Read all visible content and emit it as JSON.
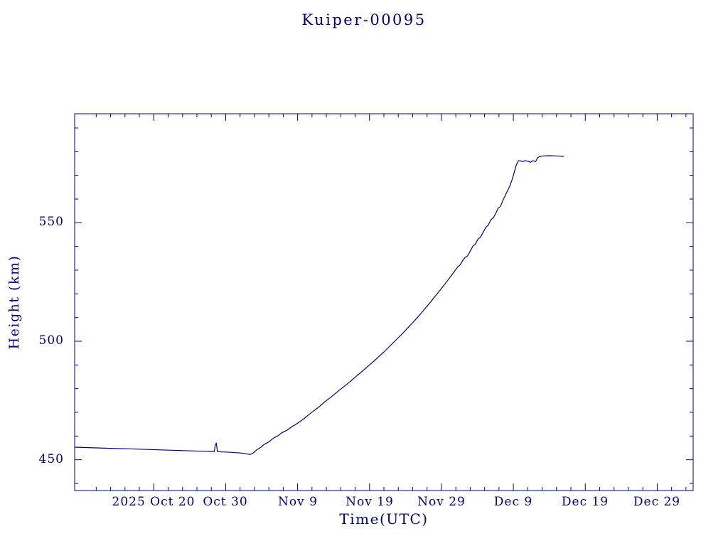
{
  "page": {
    "background": "#ffffff"
  },
  "chart_data": {
    "type": "line",
    "title": "Kuiper-00095",
    "xlabel": "Time(UTC)",
    "ylabel": "Height (km)",
    "line_color": "#000080",
    "axis_color": "#000080",
    "grid": false,
    "legend": "none",
    "x_axis": {
      "epoch_day0": "2025 Oct 9",
      "xlim_days": [
        0,
        86
      ],
      "minor_tick_step_days": 2,
      "major_ticks": [
        {
          "day": 11,
          "label": "2025 Oct 20"
        },
        {
          "day": 21,
          "label": "Oct 30"
        },
        {
          "day": 31,
          "label": "Nov 9"
        },
        {
          "day": 41,
          "label": "Nov 19"
        },
        {
          "day": 51,
          "label": "Nov 29"
        },
        {
          "day": 61,
          "label": "Dec 9"
        },
        {
          "day": 71,
          "label": "Dec 19"
        },
        {
          "day": 81,
          "label": "Dec 29"
        }
      ]
    },
    "y_axis": {
      "ylim": [
        437,
        596
      ],
      "minor_tick_step": 10,
      "major_ticks": [
        {
          "value": 450,
          "label": "450"
        },
        {
          "value": 500,
          "label": "500"
        },
        {
          "value": 550,
          "label": "550"
        }
      ]
    },
    "series": [
      {
        "name": "Kuiper-00095 height",
        "points_day_km": [
          [
            0,
            455.3
          ],
          [
            1.5,
            455.15
          ],
          [
            3,
            455.0
          ],
          [
            4.5,
            454.85
          ],
          [
            6,
            454.7
          ],
          [
            7.5,
            454.6
          ],
          [
            9,
            454.45
          ],
          [
            10.5,
            454.3
          ],
          [
            12,
            454.15
          ],
          [
            13.5,
            454.0
          ],
          [
            15,
            453.85
          ],
          [
            16.5,
            453.7
          ],
          [
            18,
            453.6
          ],
          [
            19.0,
            453.5
          ],
          [
            19.4,
            453.45
          ],
          [
            19.55,
            456.2
          ],
          [
            19.7,
            457.0
          ],
          [
            19.85,
            453.4
          ],
          [
            20.5,
            453.3
          ],
          [
            21,
            453.25
          ],
          [
            21.8,
            453.1
          ],
          [
            22.5,
            452.95
          ],
          [
            23.2,
            452.8
          ],
          [
            23.8,
            452.55
          ],
          [
            24.1,
            452.35
          ],
          [
            24.4,
            452.2
          ],
          [
            24.7,
            452.6
          ],
          [
            25.0,
            453.3
          ],
          [
            25.3,
            454.1
          ],
          [
            25.6,
            454.7
          ],
          [
            25.9,
            455.3
          ],
          [
            26.2,
            456.1
          ],
          [
            26.5,
            456.7
          ],
          [
            26.8,
            457.2
          ],
          [
            27.1,
            457.8
          ],
          [
            27.4,
            458.5
          ],
          [
            27.7,
            459.2
          ],
          [
            28.0,
            459.7
          ],
          [
            28.3,
            460.2
          ],
          [
            28.6,
            460.9
          ],
          [
            28.9,
            461.5
          ],
          [
            29.2,
            462.0
          ],
          [
            29.5,
            462.4
          ],
          [
            29.8,
            463.0
          ],
          [
            30.1,
            463.7
          ],
          [
            30.4,
            464.3
          ],
          [
            30.7,
            464.8
          ],
          [
            31.0,
            465.4
          ],
          [
            31.5,
            466.5
          ],
          [
            32.0,
            467.6
          ],
          [
            32.5,
            468.9
          ],
          [
            33.0,
            470.1
          ],
          [
            33.5,
            471.2
          ],
          [
            34.0,
            472.4
          ],
          [
            34.5,
            473.7
          ],
          [
            35.0,
            475.0
          ],
          [
            35.5,
            476.1
          ],
          [
            36.0,
            477.3
          ],
          [
            36.5,
            478.6
          ],
          [
            37.0,
            479.8
          ],
          [
            37.5,
            481.0
          ],
          [
            38.0,
            482.2
          ],
          [
            38.5,
            483.5
          ],
          [
            39.0,
            484.8
          ],
          [
            39.5,
            486.1
          ],
          [
            40.0,
            487.4
          ],
          [
            40.5,
            488.7
          ],
          [
            41.0,
            490.0
          ],
          [
            41.5,
            491.3
          ],
          [
            42.0,
            492.7
          ],
          [
            42.5,
            494.1
          ],
          [
            43.0,
            495.5
          ],
          [
            43.5,
            497.0
          ],
          [
            44.0,
            498.5
          ],
          [
            44.5,
            500.0
          ],
          [
            45.0,
            501.5
          ],
          [
            45.5,
            503.0
          ],
          [
            46.0,
            504.6
          ],
          [
            46.5,
            506.2
          ],
          [
            47.0,
            507.8
          ],
          [
            47.5,
            509.5
          ],
          [
            48.0,
            511.2
          ],
          [
            48.5,
            513.0
          ],
          [
            49.0,
            514.8
          ],
          [
            49.5,
            516.6
          ],
          [
            50.0,
            518.5
          ],
          [
            50.5,
            520.4
          ],
          [
            51.0,
            522.3
          ],
          [
            51.5,
            524.2
          ],
          [
            52.0,
            526.2
          ],
          [
            52.5,
            528.2
          ],
          [
            53.0,
            530.3
          ],
          [
            53.3,
            531.5
          ],
          [
            53.6,
            532.2
          ],
          [
            54.0,
            534.3
          ],
          [
            54.3,
            535.4
          ],
          [
            54.6,
            535.9
          ],
          [
            55.0,
            538.0
          ],
          [
            55.4,
            540.3
          ],
          [
            55.7,
            540.9
          ],
          [
            56.1,
            543.2
          ],
          [
            56.4,
            543.8
          ],
          [
            56.8,
            546.0
          ],
          [
            57.2,
            548.2
          ],
          [
            57.5,
            549.0
          ],
          [
            57.9,
            551.4
          ],
          [
            58.2,
            552.0
          ],
          [
            58.6,
            554.3
          ],
          [
            58.9,
            556.2
          ],
          [
            59.2,
            556.9
          ],
          [
            59.6,
            559.8
          ],
          [
            59.9,
            561.7
          ],
          [
            60.2,
            563.6
          ],
          [
            60.5,
            565.4
          ],
          [
            60.8,
            568.0
          ],
          [
            61.1,
            571.0
          ],
          [
            61.4,
            574.3
          ],
          [
            61.7,
            576.2
          ],
          [
            62.0,
            576.1
          ],
          [
            62.3,
            575.8
          ],
          [
            62.6,
            576.2
          ],
          [
            63.0,
            576.0
          ],
          [
            63.4,
            575.5
          ],
          [
            63.7,
            576.2
          ],
          [
            64.1,
            575.8
          ],
          [
            64.35,
            577.4
          ],
          [
            64.7,
            578.0
          ],
          [
            65.2,
            578.2
          ],
          [
            66.0,
            578.3
          ],
          [
            67.0,
            578.2
          ],
          [
            68.0,
            578.0
          ]
        ]
      }
    ]
  }
}
